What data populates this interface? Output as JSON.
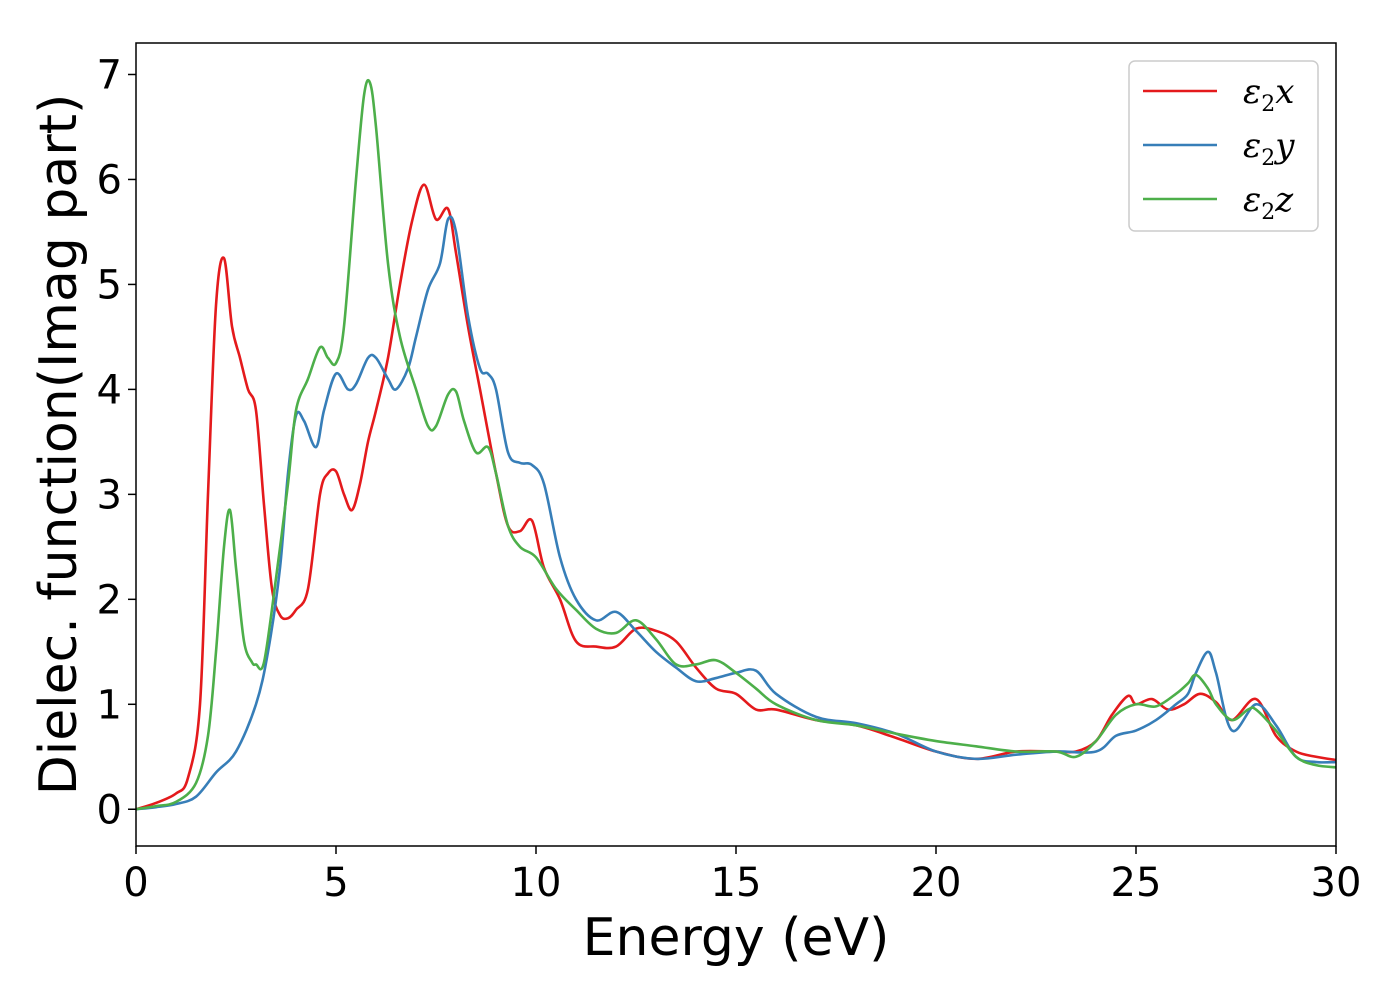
{
  "chart_data": {
    "type": "line",
    "xlabel": "Energy (eV)",
    "ylabel": "Dielec. function(Imag part)",
    "xlim": [
      0,
      30
    ],
    "ylim": [
      -0.35,
      7.3
    ],
    "xticks": [
      0,
      5,
      10,
      15,
      20,
      25,
      30
    ],
    "yticks": [
      0,
      1,
      2,
      3,
      4,
      5,
      6,
      7
    ],
    "grid": false,
    "legend_position": "top-right",
    "series": [
      {
        "name": "ε2x",
        "legend": {
          "base": "ε",
          "sub": "2",
          "suffix": "x"
        },
        "color": "#e41a1c",
        "x": [
          0,
          0.5,
          1.0,
          1.3,
          1.6,
          1.8,
          2.0,
          2.2,
          2.4,
          2.6,
          2.8,
          3.0,
          3.2,
          3.4,
          3.6,
          3.8,
          4.0,
          4.3,
          4.6,
          4.8,
          5.0,
          5.2,
          5.4,
          5.6,
          5.8,
          6.0,
          6.3,
          6.6,
          6.9,
          7.2,
          7.5,
          7.8,
          8.0,
          8.3,
          8.6,
          9.0,
          9.3,
          9.6,
          9.9,
          10.2,
          10.6,
          11.0,
          11.5,
          12.0,
          12.5,
          13.0,
          13.5,
          14.0,
          14.5,
          15.0,
          15.5,
          16.0,
          17.0,
          18.0,
          19.0,
          20.0,
          21.0,
          22.0,
          23.0,
          23.5,
          24.0,
          24.4,
          24.8,
          25.0,
          25.4,
          25.8,
          26.2,
          26.6,
          27.0,
          27.4,
          28.0,
          28.5,
          29.0,
          29.5,
          30.0
        ],
        "y": [
          0,
          0.06,
          0.15,
          0.3,
          1.0,
          3.0,
          4.8,
          5.25,
          4.6,
          4.3,
          4.0,
          3.8,
          2.9,
          2.1,
          1.85,
          1.82,
          1.9,
          2.1,
          3.0,
          3.2,
          3.22,
          3.0,
          2.85,
          3.1,
          3.5,
          3.8,
          4.3,
          5.0,
          5.6,
          5.95,
          5.62,
          5.72,
          5.3,
          4.6,
          4.0,
          3.2,
          2.7,
          2.65,
          2.75,
          2.3,
          2.0,
          1.6,
          1.55,
          1.55,
          1.72,
          1.7,
          1.6,
          1.35,
          1.15,
          1.1,
          0.95,
          0.95,
          0.85,
          0.8,
          0.68,
          0.55,
          0.48,
          0.55,
          0.55,
          0.55,
          0.65,
          0.9,
          1.08,
          1.0,
          1.05,
          0.95,
          1.0,
          1.1,
          1.02,
          0.85,
          1.05,
          0.7,
          0.55,
          0.5,
          0.47
        ]
      },
      {
        "name": "ε2y",
        "legend": {
          "base": "ε",
          "sub": "2",
          "suffix": "y"
        },
        "color": "#377eb8",
        "x": [
          0,
          0.5,
          1.0,
          1.5,
          2.0,
          2.5,
          3.0,
          3.3,
          3.6,
          3.8,
          4.0,
          4.2,
          4.5,
          4.7,
          5.0,
          5.3,
          5.5,
          5.8,
          6.0,
          6.3,
          6.5,
          6.8,
          7.0,
          7.3,
          7.6,
          7.8,
          8.0,
          8.3,
          8.6,
          8.8,
          9.0,
          9.3,
          9.6,
          9.9,
          10.2,
          10.6,
          11.0,
          11.5,
          12.0,
          12.5,
          13.0,
          13.5,
          14.0,
          14.5,
          15.0,
          15.5,
          16.0,
          17.0,
          18.0,
          19.0,
          20.0,
          21.0,
          22.0,
          23.0,
          24.0,
          24.5,
          25.0,
          25.5,
          26.0,
          26.3,
          26.5,
          26.8,
          27.0,
          27.4,
          28.0,
          28.5,
          29.0,
          29.5,
          30.0
        ],
        "y": [
          0,
          0.02,
          0.05,
          0.12,
          0.35,
          0.55,
          1.0,
          1.5,
          2.3,
          3.2,
          3.75,
          3.7,
          3.45,
          3.8,
          4.15,
          4.0,
          4.05,
          4.3,
          4.3,
          4.1,
          4.0,
          4.2,
          4.5,
          4.95,
          5.2,
          5.62,
          5.5,
          4.7,
          4.2,
          4.15,
          4.0,
          3.4,
          3.3,
          3.28,
          3.1,
          2.4,
          2.0,
          1.8,
          1.88,
          1.7,
          1.5,
          1.35,
          1.22,
          1.25,
          1.3,
          1.32,
          1.1,
          0.88,
          0.82,
          0.72,
          0.55,
          0.48,
          0.52,
          0.55,
          0.55,
          0.7,
          0.75,
          0.85,
          1.0,
          1.1,
          1.3,
          1.5,
          1.3,
          0.75,
          1.0,
          0.8,
          0.5,
          0.45,
          0.45
        ]
      },
      {
        "name": "ε2z",
        "legend": {
          "base": "ε",
          "sub": "2",
          "suffix": "z"
        },
        "color": "#4daf4a",
        "x": [
          0,
          0.5,
          1.0,
          1.5,
          1.8,
          2.0,
          2.2,
          2.35,
          2.5,
          2.7,
          2.9,
          3.0,
          3.2,
          3.5,
          3.8,
          4.0,
          4.3,
          4.6,
          4.8,
          5.0,
          5.2,
          5.5,
          5.7,
          5.85,
          6.0,
          6.3,
          6.6,
          7.0,
          7.3,
          7.5,
          7.8,
          8.0,
          8.2,
          8.5,
          8.8,
          9.0,
          9.3,
          9.6,
          10.0,
          10.5,
          11.0,
          11.5,
          12.0,
          12.5,
          13.0,
          13.5,
          14.0,
          14.5,
          15.0,
          15.5,
          16.0,
          17.0,
          18.0,
          19.0,
          20.0,
          21.0,
          22.0,
          23.0,
          23.5,
          24.0,
          24.5,
          25.0,
          25.5,
          26.0,
          26.3,
          26.5,
          26.8,
          27.0,
          27.4,
          27.8,
          28.0,
          28.5,
          29.0,
          29.5,
          30.0
        ],
        "y": [
          0,
          0.03,
          0.07,
          0.25,
          0.7,
          1.5,
          2.5,
          2.85,
          2.3,
          1.6,
          1.4,
          1.38,
          1.4,
          2.2,
          3.1,
          3.8,
          4.1,
          4.4,
          4.3,
          4.25,
          4.6,
          6.0,
          6.8,
          6.92,
          6.5,
          5.2,
          4.5,
          4.0,
          3.65,
          3.65,
          3.95,
          3.98,
          3.7,
          3.4,
          3.45,
          3.2,
          2.7,
          2.5,
          2.4,
          2.1,
          1.9,
          1.72,
          1.68,
          1.8,
          1.62,
          1.38,
          1.38,
          1.42,
          1.3,
          1.15,
          1.0,
          0.85,
          0.8,
          0.72,
          0.65,
          0.6,
          0.55,
          0.55,
          0.5,
          0.65,
          0.9,
          1.0,
          0.98,
          1.1,
          1.2,
          1.28,
          1.15,
          1.0,
          0.85,
          0.95,
          0.95,
          0.75,
          0.5,
          0.42,
          0.4
        ]
      }
    ]
  }
}
